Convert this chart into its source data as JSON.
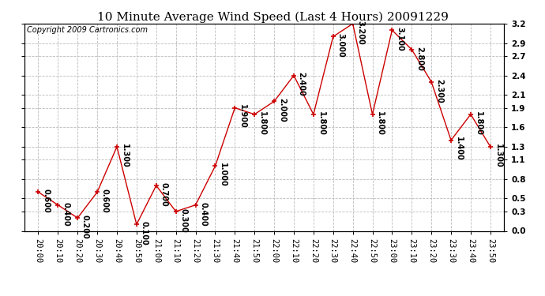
{
  "title": "10 Minute Average Wind Speed (Last 4 Hours) 20091229",
  "copyright": "Copyright 2009 Cartronics.com",
  "x_labels": [
    "20:00",
    "20:10",
    "20:20",
    "20:30",
    "20:40",
    "20:50",
    "21:00",
    "21:10",
    "21:20",
    "21:30",
    "21:40",
    "21:50",
    "22:00",
    "22:10",
    "22:20",
    "22:30",
    "22:40",
    "22:50",
    "23:00",
    "23:10",
    "23:20",
    "23:30",
    "23:40",
    "23:50"
  ],
  "y_values": [
    0.6,
    0.4,
    0.2,
    0.6,
    1.3,
    0.1,
    0.7,
    0.3,
    0.4,
    1.0,
    1.9,
    1.8,
    2.0,
    2.4,
    1.8,
    3.0,
    3.2,
    1.8,
    3.1,
    2.8,
    2.3,
    1.4,
    1.8,
    1.3
  ],
  "line_color": "#cc0000",
  "marker": "+",
  "ylim": [
    0.0,
    3.2
  ],
  "yticks": [
    0.0,
    0.3,
    0.5,
    0.8,
    1.1,
    1.3,
    1.6,
    1.9,
    2.1,
    2.4,
    2.7,
    2.9,
    3.2
  ],
  "background_color": "#ffffff",
  "plot_bg_color": "#ffffff",
  "grid_color": "#bbbbbb",
  "title_fontsize": 11,
  "copyright_fontsize": 7,
  "label_fontsize": 7,
  "tick_fontsize": 7.5
}
